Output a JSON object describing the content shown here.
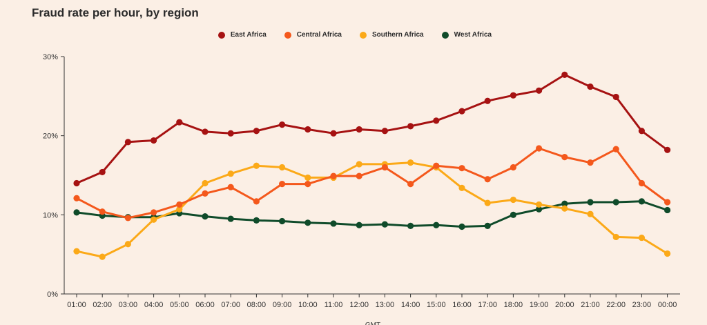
{
  "chart_data": {
    "type": "line",
    "title": "Fraud rate per hour, by region",
    "xlabel": "GMT",
    "ylabel": "",
    "ylim": [
      0,
      30
    ],
    "yticks": [
      "0%",
      "10%",
      "20%",
      "30%"
    ],
    "ytick_values": [
      0,
      10,
      20,
      30
    ],
    "grid": false,
    "legend_position": "top-center",
    "x": [
      "01:00",
      "02:00",
      "03:00",
      "04:00",
      "05:00",
      "06:00",
      "07:00",
      "08:00",
      "09:00",
      "10:00",
      "11:00",
      "12:00",
      "13:00",
      "14:00",
      "15:00",
      "16:00",
      "17:00",
      "18:00",
      "19:00",
      "20:00",
      "21:00",
      "22:00",
      "23:00",
      "00:00"
    ],
    "series": [
      {
        "name": "East Africa",
        "color": "#a61212",
        "values": [
          14.0,
          15.4,
          19.2,
          19.4,
          21.7,
          20.5,
          20.3,
          20.6,
          21.4,
          20.8,
          20.3,
          20.8,
          20.6,
          21.2,
          21.9,
          23.1,
          24.4,
          25.1,
          25.7,
          27.7,
          26.2,
          24.9,
          20.6,
          18.2
        ]
      },
      {
        "name": "Central Africa",
        "color": "#f4581c",
        "values": [
          12.1,
          10.4,
          9.6,
          10.3,
          11.3,
          12.7,
          13.5,
          11.7,
          13.9,
          13.9,
          14.9,
          14.9,
          16.0,
          13.9,
          16.2,
          15.9,
          14.5,
          16.0,
          18.4,
          17.3,
          16.6,
          18.3,
          14.0,
          11.6
        ]
      },
      {
        "name": "Southern Africa",
        "color": "#fba918",
        "values": [
          5.4,
          4.7,
          6.3,
          9.4,
          10.7,
          14.0,
          15.2,
          16.2,
          16.0,
          14.7,
          14.7,
          16.4,
          16.4,
          16.6,
          16.0,
          13.4,
          11.5,
          11.9,
          11.3,
          10.8,
          10.1,
          7.2,
          7.1,
          5.1
        ]
      },
      {
        "name": "West Africa",
        "color": "#0f4b2a",
        "values": [
          10.3,
          9.9,
          9.7,
          9.7,
          10.2,
          9.8,
          9.5,
          9.3,
          9.2,
          9.0,
          8.9,
          8.7,
          8.8,
          8.6,
          8.7,
          8.5,
          8.6,
          10.0,
          10.7,
          11.4,
          11.6,
          11.6,
          11.7,
          10.6
        ]
      }
    ]
  }
}
